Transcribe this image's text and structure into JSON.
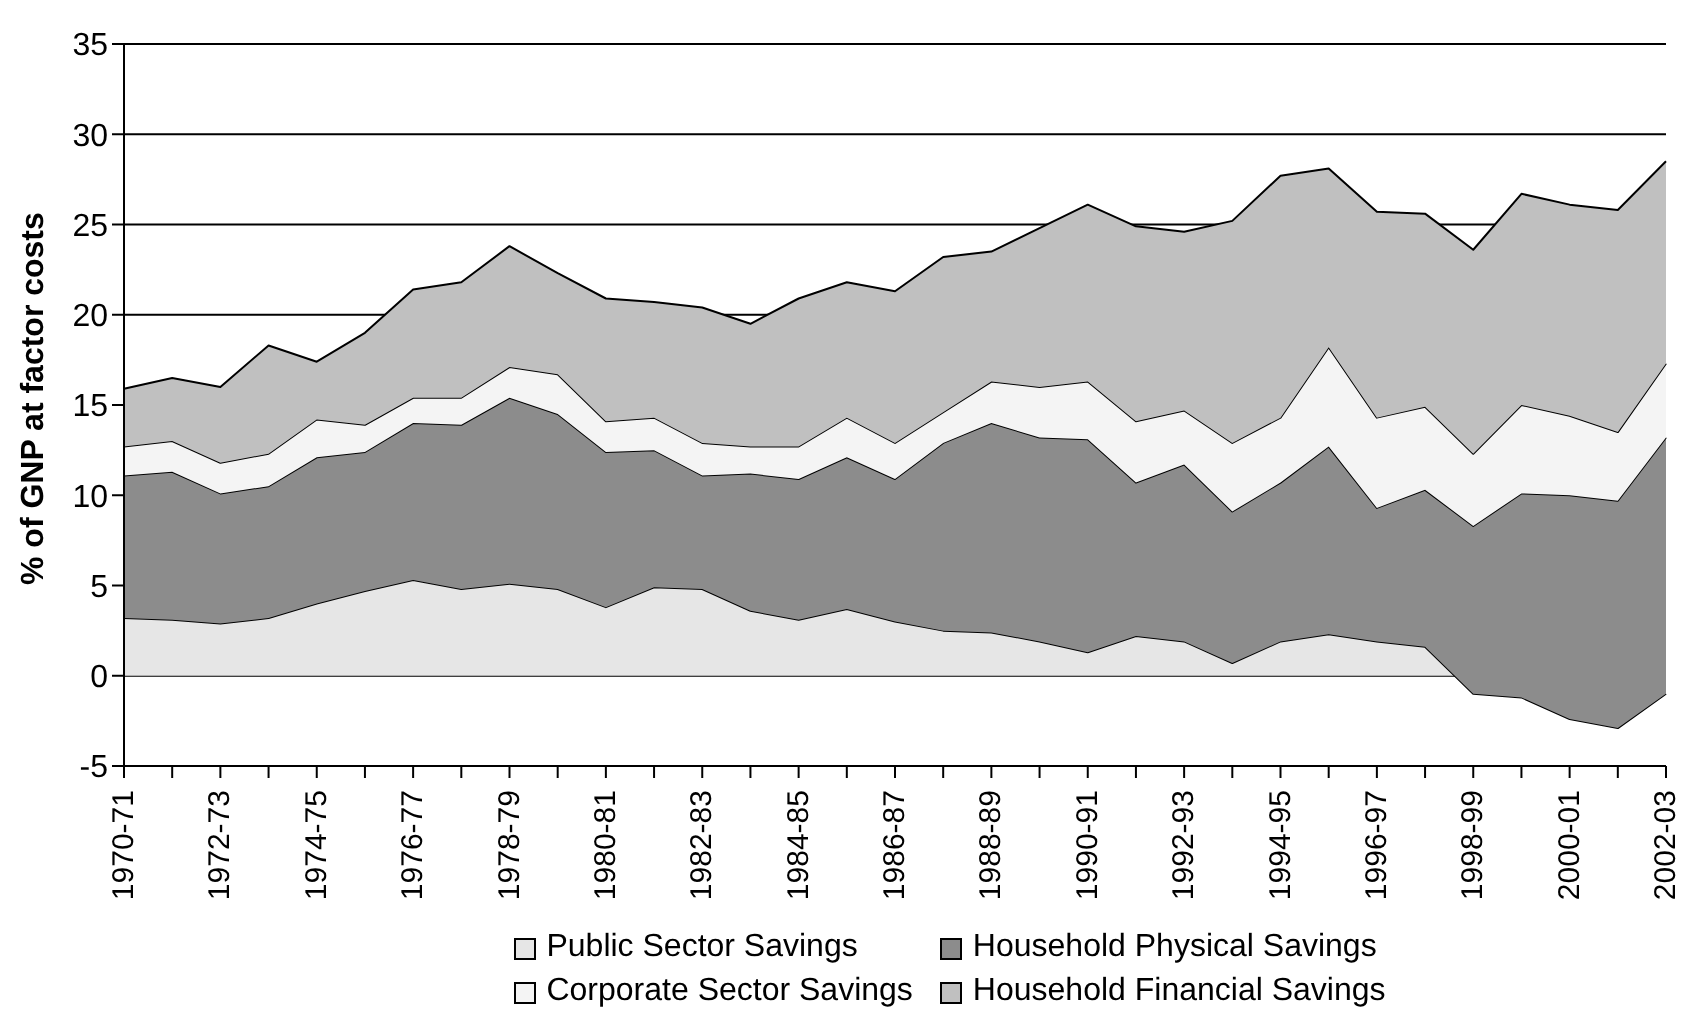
{
  "chart_data": {
    "type": "area",
    "stacked": true,
    "ylabel": "% of GNP at factor costs",
    "categories": [
      "1970-71",
      null,
      "1972-73",
      null,
      "1974-75",
      null,
      "1976-77",
      null,
      "1978-79",
      null,
      "1980-81",
      null,
      "1982-83",
      null,
      "1984-85",
      null,
      "1986-87",
      null,
      "1988-89",
      null,
      "1990-91",
      null,
      "1992-93",
      null,
      "1994-95",
      null,
      "1996-97",
      null,
      "1998-99",
      null,
      "2000-01",
      null,
      "2002-03"
    ],
    "series": [
      {
        "name": "Public Sector Savings",
        "color": "#e6e6e6",
        "values": [
          3.2,
          3.1,
          2.9,
          3.2,
          4.0,
          4.7,
          5.3,
          4.8,
          5.1,
          4.8,
          3.8,
          4.9,
          4.8,
          3.6,
          3.1,
          3.7,
          3.0,
          2.5,
          2.4,
          1.9,
          1.3,
          2.2,
          1.9,
          0.7,
          1.9,
          2.3,
          1.9,
          1.6,
          -1.0,
          -1.2,
          -2.4,
          -2.9,
          -1.0
        ]
      },
      {
        "name": "Household Physical Savings",
        "color": "#8c8c8c",
        "values": [
          7.9,
          8.2,
          7.2,
          7.3,
          8.1,
          7.7,
          8.7,
          9.1,
          10.3,
          9.7,
          8.6,
          7.6,
          6.3,
          7.6,
          7.8,
          8.4,
          7.9,
          10.4,
          11.6,
          11.3,
          11.8,
          8.5,
          9.8,
          8.4,
          8.8,
          10.4,
          7.4,
          8.7,
          9.3,
          11.3,
          12.4,
          12.6,
          14.2
        ]
      },
      {
        "name": "Corporate Sector Savings",
        "color": "#f4f4f4",
        "values": [
          1.6,
          1.7,
          1.7,
          1.8,
          2.1,
          1.5,
          1.4,
          1.5,
          1.7,
          2.2,
          1.7,
          1.8,
          1.8,
          1.5,
          1.8,
          2.2,
          2.0,
          1.7,
          2.3,
          2.8,
          3.2,
          3.4,
          3.0,
          3.8,
          3.6,
          5.5,
          5.0,
          4.6,
          4.0,
          4.9,
          4.4,
          3.8,
          4.1
        ]
      },
      {
        "name": "Household Financial Savings",
        "color": "#c0c0c0",
        "values": [
          3.2,
          3.5,
          4.2,
          6.0,
          3.2,
          5.1,
          6.0,
          6.4,
          6.7,
          5.6,
          6.8,
          6.4,
          7.5,
          6.8,
          8.2,
          7.5,
          8.4,
          8.6,
          7.2,
          8.8,
          9.8,
          10.8,
          9.9,
          12.3,
          13.4,
          9.9,
          11.4,
          10.7,
          11.3,
          11.7,
          11.7,
          12.3,
          11.2
        ]
      }
    ],
    "ylim": [
      -5,
      35
    ],
    "yticks": [
      -5,
      0,
      5,
      10,
      15,
      20,
      25,
      30,
      35
    ],
    "grid": "y",
    "legend": "bottom"
  }
}
